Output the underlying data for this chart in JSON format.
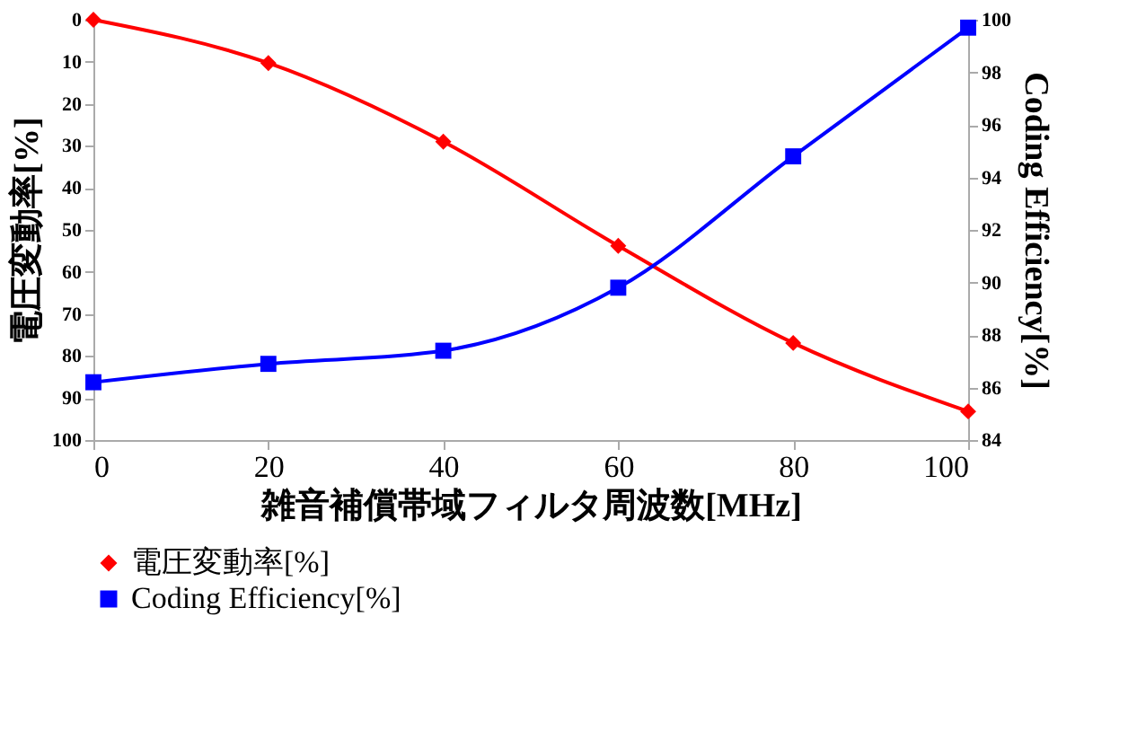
{
  "chart_data": {
    "type": "line",
    "xlabel": "雑音補償帯域フィルタ周波数[MHz]",
    "ylabel": "電圧変動率[%]",
    "y2label": "Coding Efficiency[%]",
    "x": [
      0,
      20,
      40,
      60,
      80,
      100
    ],
    "xlim": [
      0,
      100
    ],
    "xticks": [
      0,
      20,
      40,
      60,
      80,
      100
    ],
    "ylim": [
      100,
      0
    ],
    "yticks": [
      0,
      10,
      20,
      30,
      40,
      50,
      60,
      70,
      80,
      90,
      100
    ],
    "y2lim": [
      84,
      100
    ],
    "y2ticks": [
      84,
      86,
      88,
      90,
      92,
      94,
      96,
      98,
      100
    ],
    "series": [
      {
        "name": "電圧変動率[%]",
        "color": "#ff0000",
        "marker": "diamond",
        "values": [
          0,
          10.3,
          29,
          53.8,
          76.9,
          93.2
        ]
      },
      {
        "name": "Coding Efficiency[%]",
        "color": "#0000ff",
        "marker": "square",
        "axis": "y2",
        "values": [
          86.2,
          86.9,
          87.4,
          89.8,
          94.8,
          99.7
        ]
      }
    ],
    "legend": "bottom",
    "grid": false,
    "line_style": "solid"
  }
}
